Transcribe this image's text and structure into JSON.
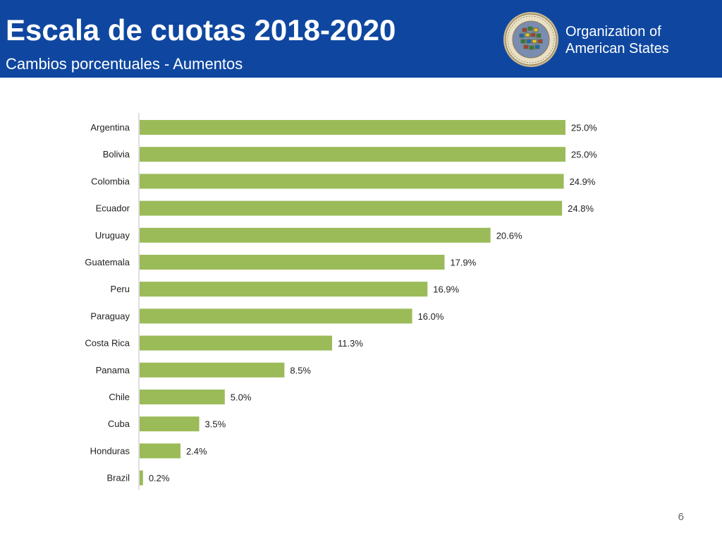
{
  "header": {
    "title": "Escala de cuotas 2018-2020",
    "subtitle": "Cambios porcentuales - Aumentos",
    "org_name_line1": "Organization of",
    "org_name_line2": "American States",
    "background_color": "#0f47a0"
  },
  "chart_data": {
    "type": "bar",
    "orientation": "horizontal",
    "categories": [
      "Argentina",
      "Bolivia",
      "Colombia",
      "Ecuador",
      "Uruguay",
      "Guatemala",
      "Peru",
      "Paraguay",
      "Costa Rica",
      "Panama",
      "Chile",
      "Cuba",
      "Honduras",
      "Brazil"
    ],
    "values": [
      25.0,
      25.0,
      24.9,
      24.8,
      20.6,
      17.9,
      16.9,
      16.0,
      11.3,
      8.5,
      5.0,
      3.5,
      2.4,
      0.2
    ],
    "value_labels": [
      "25.0%",
      "25.0%",
      "24.9%",
      "24.8%",
      "20.6%",
      "17.9%",
      "16.9%",
      "16.0%",
      "11.3%",
      "8.5%",
      "5.0%",
      "3.5%",
      "2.4%",
      "0.2%"
    ],
    "xlim": [
      0,
      25
    ],
    "bar_color": "#9bbb59",
    "grid": false,
    "legend": "none"
  },
  "footer": {
    "page_number": "6"
  }
}
